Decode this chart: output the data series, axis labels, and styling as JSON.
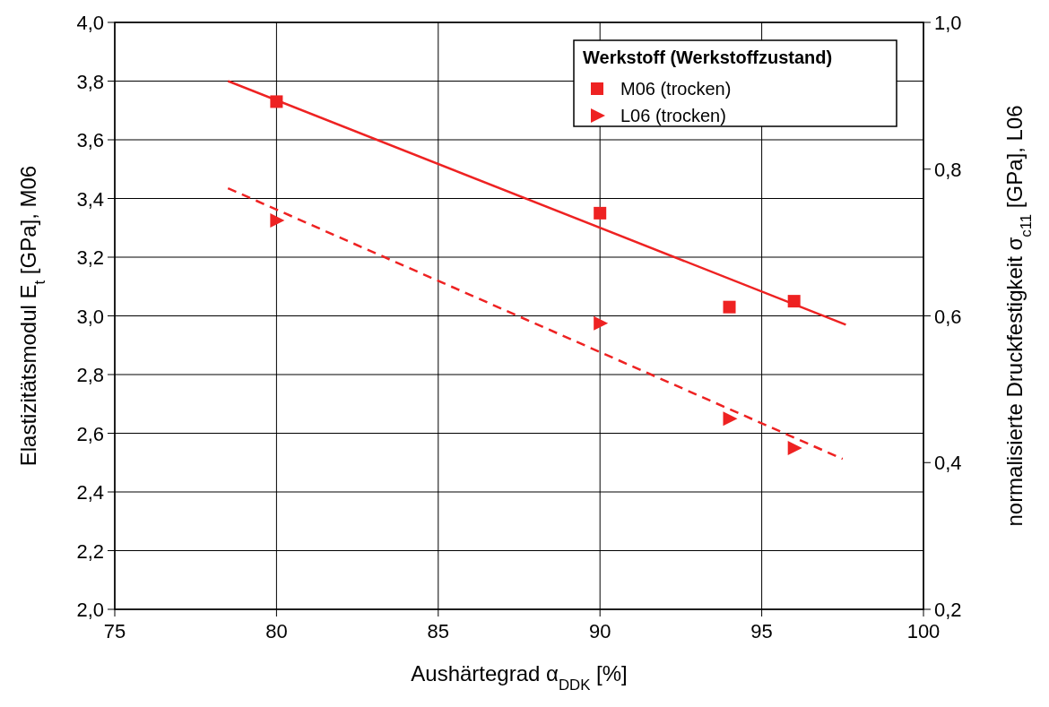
{
  "chart_data": {
    "type": "scatter",
    "xlabel": "Aushärtegrad α$_{DDK}$ [%]",
    "ylabel": "Elastizitätsmodul E$_{t}$ [GPa], M06",
    "y2label": "normalisierte Druckfestigkeit σ$_{c11}$ [GPa], L06",
    "legend_title": "Werkstoff (Werkstoffzustand)",
    "legend": "top right",
    "grid": true,
    "xlim": [
      75,
      100
    ],
    "xticks": [
      75,
      80,
      85,
      90,
      95,
      100
    ],
    "ylim": [
      2.0,
      4.0
    ],
    "yticks": [
      {
        "value": 2.0,
        "label": "2,0"
      },
      {
        "value": 2.2,
        "label": "2,2"
      },
      {
        "value": 2.4,
        "label": "2,4"
      },
      {
        "value": 2.6,
        "label": "2,6"
      },
      {
        "value": 2.8,
        "label": "2,8"
      },
      {
        "value": 3.0,
        "label": "3,0"
      },
      {
        "value": 3.2,
        "label": "3,2"
      },
      {
        "value": 3.4,
        "label": "3,4"
      },
      {
        "value": 3.6,
        "label": "3,6"
      },
      {
        "value": 3.8,
        "label": "3,8"
      },
      {
        "value": 4.0,
        "label": "4,0"
      }
    ],
    "y2lim": [
      0.2,
      1.0
    ],
    "y2ticks": [
      {
        "value": 0.2,
        "label": "0,2"
      },
      {
        "value": 0.4,
        "label": "0,4"
      },
      {
        "value": 0.6,
        "label": "0,6"
      },
      {
        "value": 0.8,
        "label": "0,8"
      },
      {
        "value": 1.0,
        "label": "1,0"
      }
    ],
    "series": [
      {
        "name": "M06 (trocken)",
        "marker": "square",
        "color": "#ee2222",
        "x": [
          80,
          90,
          94,
          96
        ],
        "values": [
          3.73,
          3.35,
          3.03,
          3.05
        ]
      },
      {
        "name": "L06 (trocken)",
        "marker": "triangle",
        "axis": "y2",
        "color": "#ee2222",
        "x": [
          80,
          90,
          94,
          96
        ],
        "values": [
          0.73,
          0.59,
          0.46,
          0.42
        ]
      },
      {
        "type": "line",
        "line_style": "solid",
        "color": "#ee2222",
        "x": [
          78.5,
          97.6
        ],
        "values": [
          3.8,
          2.97
        ]
      },
      {
        "type": "line",
        "line_style": "dashed",
        "axis": "y2",
        "color": "#ee2222",
        "x": [
          78.5,
          97.5
        ],
        "values": [
          0.774,
          0.405
        ]
      }
    ]
  }
}
